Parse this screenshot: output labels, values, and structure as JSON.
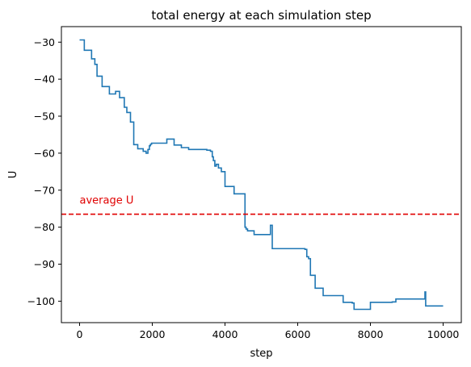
{
  "chart_data": {
    "type": "line",
    "title": "total energy at each simulation step",
    "xlabel": "step",
    "ylabel": "U",
    "xlim": [
      -500,
      10500
    ],
    "ylim": [
      -105.8,
      -25.8
    ],
    "x_ticks": [
      0,
      2000,
      4000,
      6000,
      8000,
      10000
    ],
    "x_tick_labels": [
      "0",
      "2000",
      "4000",
      "6000",
      "8000",
      "10000"
    ],
    "y_ticks": [
      -30,
      -40,
      -50,
      -60,
      -70,
      -80,
      -90,
      -100
    ],
    "y_tick_labels": [
      "−30",
      "−40",
      "−50",
      "−60",
      "−70",
      "−80",
      "−90",
      "−100"
    ],
    "grid": false,
    "line_color": "#1f77b4",
    "series": [
      {
        "step_style": "post",
        "x": [
          0,
          130,
          330,
          420,
          480,
          620,
          820,
          990,
          1100,
          1230,
          1300,
          1400,
          1490,
          1600,
          1750,
          1830,
          1880,
          1920,
          1950,
          1980,
          2100,
          2400,
          2600,
          2800,
          3000,
          3500,
          3600,
          3650,
          3680,
          3720,
          3760,
          3820,
          3900,
          4000,
          4250,
          4550,
          4580,
          4620,
          4800,
          5250,
          5300,
          5350,
          6200,
          6250,
          6300,
          6350,
          6480,
          6700,
          7250,
          7500,
          7550,
          8000,
          8600,
          8700,
          9480,
          9500,
          9520,
          10000
        ],
        "y": [
          -29.4,
          -32.2,
          -34.5,
          -36.0,
          -39.2,
          -42.0,
          -44.0,
          -43.3,
          -45.0,
          -47.6,
          -49.0,
          -51.6,
          -57.7,
          -58.8,
          -59.5,
          -60.0,
          -59.0,
          -58.0,
          -57.6,
          -57.3,
          -57.3,
          -56.2,
          -57.8,
          -58.5,
          -59.0,
          -59.2,
          -59.5,
          -61.0,
          -62.0,
          -63.5,
          -63.0,
          -64.0,
          -65.0,
          -69.0,
          -71.0,
          -80.0,
          -80.5,
          -81.0,
          -82.0,
          -79.5,
          -85.8,
          -85.8,
          -86.0,
          -88.0,
          -88.5,
          -93.0,
          -96.5,
          -98.5,
          -100.3,
          -100.5,
          -102.2,
          -100.3,
          -100.2,
          -99.4,
          -99.4,
          -97.5,
          -101.3,
          -101.3
        ]
      }
    ],
    "reference_lines": [
      {
        "type": "horizontal",
        "y": -76.5,
        "color": "#e00000",
        "style": "dashed",
        "label": "average U"
      }
    ]
  }
}
